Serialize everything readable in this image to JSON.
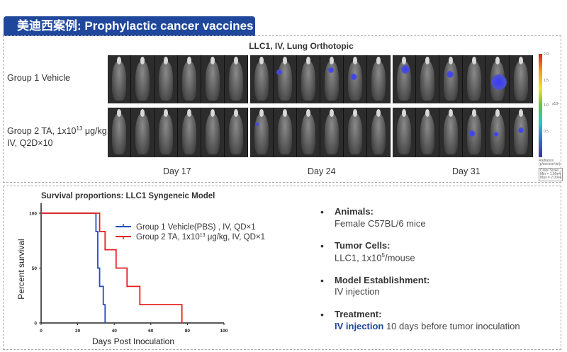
{
  "banner": {
    "title": "美迪西案例: Prophylactic cancer vaccines"
  },
  "imaging": {
    "title": "LLC1, IV, Lung Orthotopic",
    "groups": [
      {
        "label": "Group 1 Vehicle"
      },
      {
        "label_pre": "Group 2 TA, 1x10",
        "label_sup": "13",
        "label_post": " μg/kg,",
        "label_line2": "IV, Q2D×10"
      }
    ],
    "days": [
      "Day 17",
      "Day 24",
      "Day 31"
    ],
    "colorbar": {
      "ticks": [
        "2.0",
        "1.5",
        "1.0",
        "0.5"
      ],
      "unit": "x10⁶",
      "caption": "Radiance (p/sec/cm²/sr)",
      "scale": [
        "Color Scale",
        "Min = 1.00e4",
        "Max = 2.00e6"
      ],
      "colors": [
        "#e41a1c",
        "#f5e51b",
        "#5dc93a",
        "#23c9c9",
        "#3b2fa8"
      ]
    }
  },
  "chart_data": {
    "type": "line",
    "step": true,
    "title": "Survival proportions: LLC1 Syngeneic Model",
    "xlabel": "Days Post Inoculation",
    "ylabel": "Percent survival",
    "xlim": [
      0,
      100
    ],
    "ylim": [
      0,
      100
    ],
    "xticks": [
      "0",
      "20",
      "40",
      "60",
      "80",
      "100"
    ],
    "yticks": [
      "0",
      "50",
      "100"
    ],
    "legend": "top-right",
    "series": [
      {
        "name": "Group 1 Vehicle(PBS) , IV, QD×1",
        "color": "#1f4fbf",
        "x": [
          0,
          30,
          31,
          32,
          34,
          35
        ],
        "y": [
          100,
          83.3,
          50,
          33.3,
          16.7,
          0
        ]
      },
      {
        "name_pre": "Group 2 TA,  1x10",
        "name_sup": "13",
        "name_post": " μg/kg, IV, QD×1",
        "color": "#e82020",
        "x": [
          0,
          32,
          35,
          41,
          47,
          54,
          77
        ],
        "y": [
          100,
          83.3,
          66.7,
          50,
          33.3,
          16.7,
          0
        ]
      }
    ]
  },
  "info": [
    {
      "heading": "Animals:",
      "value": "Female C57BL/6 mice"
    },
    {
      "heading": "Tumor Cells:",
      "value_pre": "LLC1, 1x10",
      "value_sup": "5",
      "value_post": "/mouse"
    },
    {
      "heading": "Model Establishment:",
      "value": "IV injection"
    },
    {
      "heading": "Treatment:",
      "highlight": "IV injection",
      "value": " 10 days before tumor inoculation",
      "highlight_color": "#1f479c"
    }
  ]
}
